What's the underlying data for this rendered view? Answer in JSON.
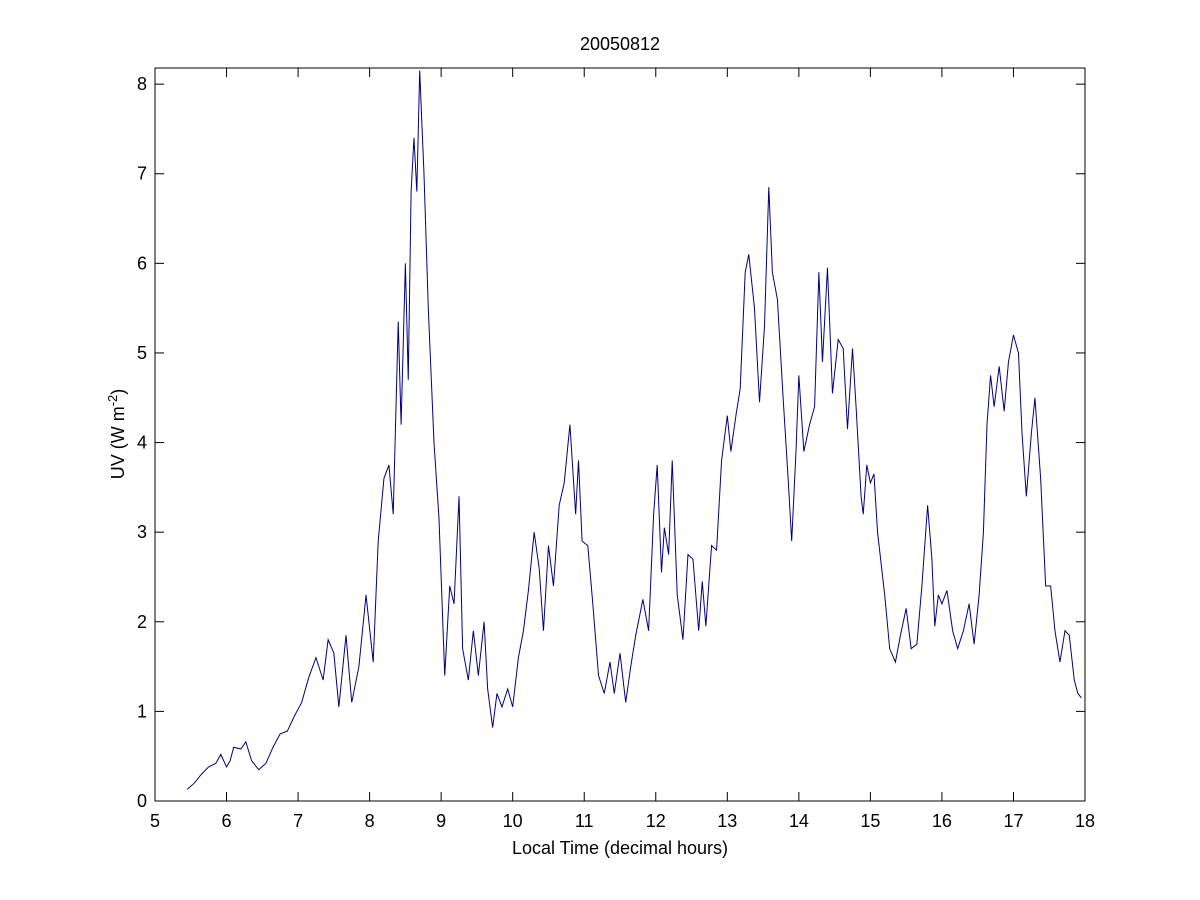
{
  "chart_data": {
    "type": "line",
    "title": "20050812",
    "xlabel": "Local Time (decimal hours)",
    "ylabel": [
      "UV (W m",
      "-2",
      ")"
    ],
    "xlim": [
      5,
      18
    ],
    "xticks": [
      5,
      6,
      7,
      8,
      9,
      10,
      11,
      12,
      13,
      14,
      15,
      16,
      17,
      18
    ],
    "ylim": [
      0,
      8.18
    ],
    "yticks": [
      0,
      1,
      2,
      3,
      4,
      5,
      6,
      7,
      8
    ],
    "grid": false,
    "x": [
      5.45,
      5.55,
      5.65,
      5.75,
      5.85,
      5.92,
      6.0,
      6.05,
      6.1,
      6.2,
      6.27,
      6.35,
      6.45,
      6.55,
      6.65,
      6.75,
      6.85,
      6.95,
      7.05,
      7.15,
      7.25,
      7.35,
      7.42,
      7.5,
      7.57,
      7.67,
      7.75,
      7.85,
      7.95,
      8.05,
      8.12,
      8.2,
      8.27,
      8.33,
      8.4,
      8.44,
      8.5,
      8.54,
      8.58,
      8.62,
      8.66,
      8.7,
      8.76,
      8.82,
      8.9,
      8.97,
      9.05,
      9.12,
      9.18,
      9.25,
      9.3,
      9.38,
      9.45,
      9.52,
      9.6,
      9.65,
      9.72,
      9.78,
      9.85,
      9.93,
      10.0,
      10.08,
      10.15,
      10.22,
      10.3,
      10.37,
      10.43,
      10.5,
      10.57,
      10.65,
      10.72,
      10.8,
      10.88,
      10.92,
      10.97,
      11.05,
      11.12,
      11.2,
      11.28,
      11.36,
      11.42,
      11.5,
      11.58,
      11.65,
      11.72,
      11.82,
      11.9,
      11.97,
      12.02,
      12.08,
      12.12,
      12.18,
      12.23,
      12.3,
      12.38,
      12.45,
      12.52,
      12.6,
      12.65,
      12.7,
      12.78,
      12.85,
      12.92,
      13.0,
      13.05,
      13.12,
      13.18,
      13.25,
      13.3,
      13.38,
      13.45,
      13.52,
      13.58,
      13.63,
      13.7,
      13.78,
      13.85,
      13.9,
      13.96,
      14.0,
      14.07,
      14.15,
      14.22,
      14.28,
      14.33,
      14.4,
      14.47,
      14.55,
      14.62,
      14.68,
      14.75,
      14.8,
      14.87,
      14.9,
      14.95,
      15.0,
      15.05,
      15.1,
      15.2,
      15.27,
      15.35,
      15.42,
      15.5,
      15.57,
      15.65,
      15.72,
      15.8,
      15.86,
      15.9,
      15.95,
      16.0,
      16.07,
      16.15,
      16.22,
      16.3,
      16.38,
      16.45,
      16.52,
      16.58,
      16.63,
      16.68,
      16.73,
      16.8,
      16.87,
      16.93,
      17.0,
      17.07,
      17.12,
      17.18,
      17.25,
      17.3,
      17.38,
      17.45,
      17.52,
      17.58,
      17.65,
      17.72,
      17.78,
      17.85,
      17.9,
      17.95
    ],
    "series": [
      {
        "name": "UV",
        "color": "#00007f",
        "values": [
          0.13,
          0.2,
          0.3,
          0.38,
          0.42,
          0.52,
          0.38,
          0.45,
          0.6,
          0.58,
          0.66,
          0.45,
          0.35,
          0.42,
          0.6,
          0.75,
          0.78,
          0.95,
          1.1,
          1.38,
          1.6,
          1.35,
          1.8,
          1.65,
          1.05,
          1.85,
          1.1,
          1.5,
          2.3,
          1.55,
          2.9,
          3.6,
          3.75,
          3.2,
          5.35,
          4.2,
          6.0,
          4.7,
          6.8,
          7.4,
          6.8,
          8.15,
          7.0,
          5.5,
          4.0,
          3.15,
          1.4,
          2.4,
          2.2,
          3.4,
          1.7,
          1.35,
          1.9,
          1.4,
          2.0,
          1.25,
          0.82,
          1.2,
          1.05,
          1.25,
          1.05,
          1.6,
          1.9,
          2.35,
          3.0,
          2.6,
          1.9,
          2.85,
          2.4,
          3.3,
          3.55,
          4.2,
          3.2,
          3.8,
          2.9,
          2.85,
          2.2,
          1.4,
          1.2,
          1.55,
          1.2,
          1.65,
          1.1,
          1.5,
          1.85,
          2.25,
          1.9,
          3.2,
          3.75,
          2.55,
          3.05,
          2.75,
          3.8,
          2.3,
          1.8,
          2.75,
          2.7,
          1.9,
          2.45,
          1.95,
          2.85,
          2.8,
          3.8,
          4.3,
          3.9,
          4.3,
          4.6,
          5.9,
          6.1,
          5.5,
          4.45,
          5.3,
          6.85,
          5.9,
          5.6,
          4.5,
          3.6,
          2.9,
          3.9,
          4.75,
          3.9,
          4.2,
          4.4,
          5.9,
          4.9,
          5.95,
          4.55,
          5.15,
          5.05,
          4.15,
          5.05,
          4.4,
          3.4,
          3.2,
          3.75,
          3.55,
          3.65,
          3.0,
          2.3,
          1.7,
          1.55,
          1.85,
          2.15,
          1.7,
          1.75,
          2.4,
          3.3,
          2.7,
          1.95,
          2.3,
          2.2,
          2.35,
          1.9,
          1.7,
          1.9,
          2.2,
          1.75,
          2.3,
          3.0,
          4.2,
          4.75,
          4.4,
          4.85,
          4.35,
          4.9,
          5.2,
          5.0,
          4.1,
          3.4,
          4.1,
          4.5,
          3.6,
          2.4,
          2.4,
          1.9,
          1.55,
          1.9,
          1.85,
          1.35,
          1.2,
          1.15
        ]
      }
    ]
  }
}
